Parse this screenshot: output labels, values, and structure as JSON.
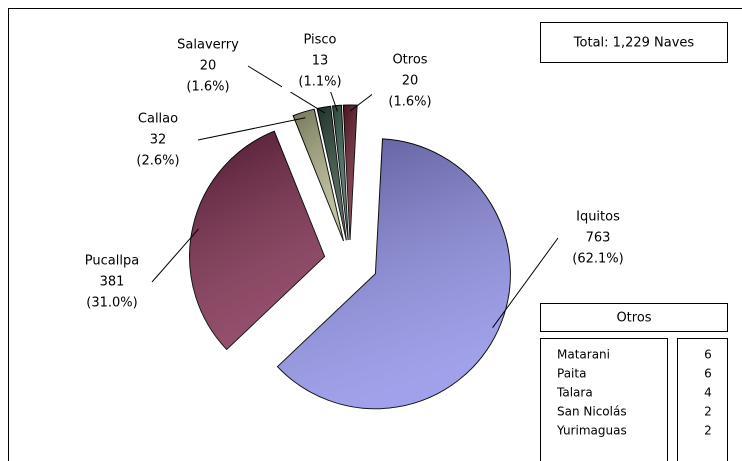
{
  "chart_data": {
    "type": "pie",
    "categories": [
      "Iquitos",
      "Pucallpa",
      "Callao",
      "Salaverry",
      "Pisco",
      "Otros"
    ],
    "values": [
      763,
      381,
      32,
      20,
      13,
      20
    ],
    "percent_labels": [
      "(62.1%)",
      "(31.0%)",
      "(2.6%)",
      "(1.6%)",
      "(1.1%)",
      "(1.6%)"
    ],
    "colors": [
      "#8a8ae6",
      "#7a2448",
      "#b3b58a",
      "#2f4a3c",
      "#3f6a58",
      "#6e1f30"
    ],
    "total_label": "Total: 1,229 Naves",
    "otros_table": {
      "title": "Otros",
      "rows": [
        [
          "Matarani",
          6
        ],
        [
          "Paita",
          6
        ],
        [
          "Talara",
          4
        ],
        [
          "San Nicolás",
          2
        ],
        [
          "Yurimaguas",
          2
        ]
      ]
    }
  }
}
